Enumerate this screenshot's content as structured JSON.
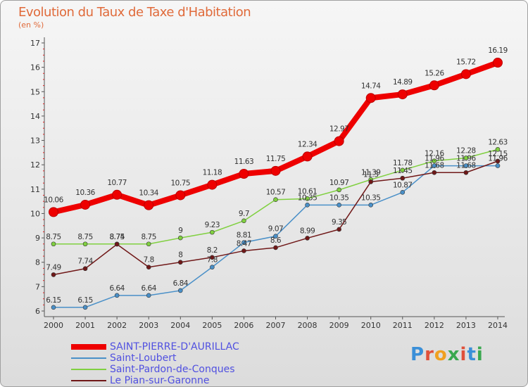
{
  "title": "Evolution du Taux de Taxe d'Habitation",
  "unit": "(en %)",
  "logo": {
    "text": "Proxiti",
    "colors": [
      "#3a8fd8",
      "#e0503a",
      "#f0a020",
      "#3aa850",
      "#e0503a",
      "#3a8fd8",
      "#3aa850"
    ]
  },
  "chart_data": {
    "type": "line",
    "title": "Evolution du Taux de Taxe d'Habitation",
    "ylabel": "(en %)",
    "xlabel": "",
    "x": [
      "2000",
      "2001",
      "2002",
      "2003",
      "2004",
      "2005",
      "2006",
      "2007",
      "2008",
      "2009",
      "2010",
      "2011",
      "2012",
      "2013",
      "2014"
    ],
    "yticks": [
      6,
      7,
      8,
      9,
      10,
      11,
      12,
      13,
      14,
      15,
      16,
      17
    ],
    "ylim": [
      6,
      17
    ],
    "grid": false,
    "legend_position": "bottom",
    "series": [
      {
        "name": "SAINT-PIERRE-D'AURILLAC",
        "color": "#ee0000",
        "width": 8,
        "values": [
          10.06,
          10.36,
          10.77,
          10.34,
          10.75,
          11.18,
          11.63,
          11.75,
          12.34,
          12.97,
          14.74,
          14.89,
          15.26,
          15.72,
          16.19
        ],
        "labels": [
          "10.06",
          "10.36",
          "10.77",
          "10.34",
          "10.75",
          "11.18",
          "11.63",
          "11.75",
          "12.34",
          "12.97",
          "14.74",
          "14.89",
          "15.26",
          "15.72",
          "16.19"
        ]
      },
      {
        "name": "Saint-Loubert",
        "color": "#4a90c8",
        "width": 1.5,
        "values": [
          6.15,
          6.15,
          6.64,
          6.64,
          6.84,
          7.8,
          8.81,
          9.07,
          10.35,
          10.35,
          10.35,
          10.87,
          11.96,
          11.96,
          11.96
        ],
        "labels": [
          "6.15",
          "6.15",
          "6.64",
          "6.64",
          "6.84",
          "7.8",
          "8.81",
          "9.07",
          "10.35",
          "10.35",
          "10.35",
          "10.87",
          "11.96",
          "11.96",
          "11.96"
        ]
      },
      {
        "name": "Saint-Pardon-de-Conques",
        "color": "#80d040",
        "width": 1.5,
        "values": [
          8.75,
          8.75,
          8.75,
          8.75,
          9,
          9.23,
          9.7,
          10.57,
          10.61,
          10.97,
          11.39,
          11.78,
          12.16,
          12.28,
          12.63
        ],
        "labels": [
          "8.75",
          "8.75",
          "8.75",
          "8.75",
          "9",
          "9.23",
          "9.7",
          "10.57",
          "10.61",
          "10.97",
          "11.39",
          "11.78",
          "12.16",
          "12.28",
          "12.63"
        ]
      },
      {
        "name": "Le Pian-sur-Garonne",
        "color": "#701818",
        "width": 1.5,
        "values": [
          7.49,
          7.74,
          8.74,
          7.8,
          8,
          8.2,
          8.47,
          8.6,
          8.99,
          9.35,
          11.3,
          11.45,
          11.68,
          11.68,
          12.15
        ],
        "labels": [
          "7.49",
          "7.74",
          "8.74",
          "7.8",
          "8",
          "8.2",
          "8.47",
          "8.6",
          "8.99",
          "9.35",
          "11.3",
          "11.45",
          "11.68",
          "11.68",
          "12.15"
        ]
      }
    ]
  }
}
